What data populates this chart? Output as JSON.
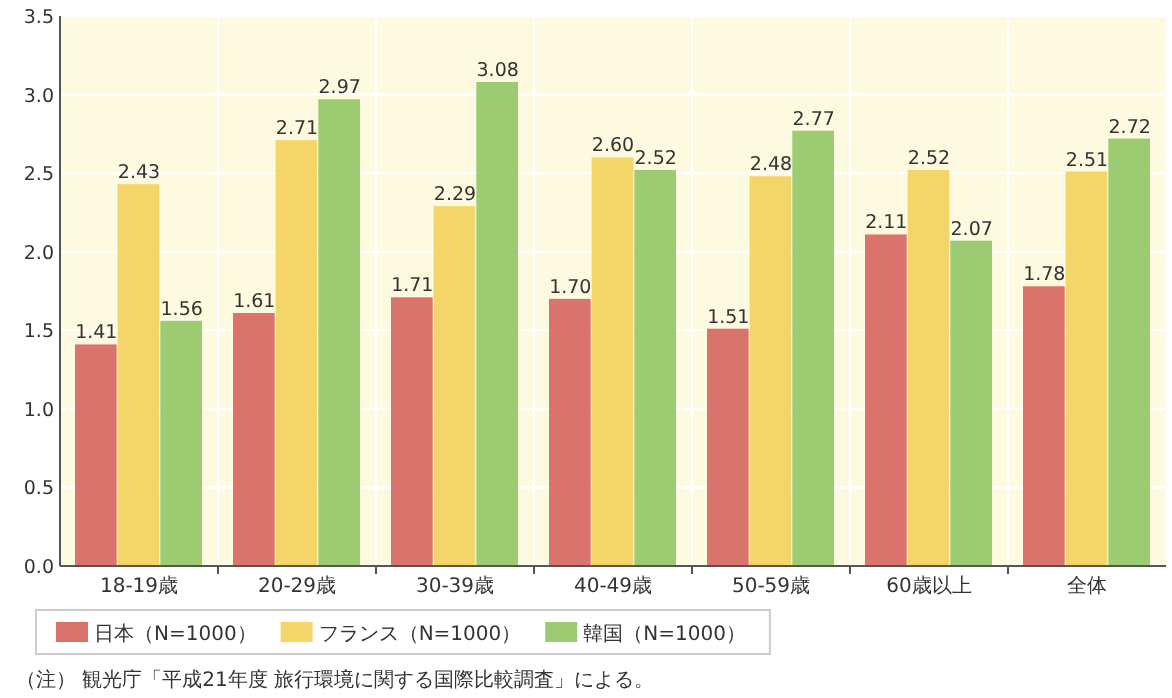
{
  "chart_data": {
    "type": "bar",
    "categories": [
      "18-19歳",
      "20-29歳",
      "30-39歳",
      "40-49歳",
      "50-59歳",
      "60歳以上",
      "全体"
    ],
    "series": [
      {
        "name": "日本（N=1000）",
        "color": "#d9736c",
        "values": [
          1.41,
          1.61,
          1.71,
          1.7,
          1.51,
          2.11,
          1.78
        ],
        "value_labels": [
          "1.41",
          "1.61",
          "1.71",
          "1.70",
          "1.51",
          "2.11",
          "1.78"
        ]
      },
      {
        "name": "フランス（N=1000）",
        "color": "#f3d56a",
        "values": [
          2.43,
          2.71,
          2.29,
          2.6,
          2.48,
          2.52,
          2.51
        ],
        "value_labels": [
          "2.43",
          "2.71",
          "2.29",
          "2.60",
          "2.48",
          "2.52",
          "2.51"
        ]
      },
      {
        "name": "韓国（N=1000）",
        "color": "#9ccb72",
        "values": [
          1.56,
          2.97,
          3.08,
          2.52,
          2.77,
          2.07,
          2.72
        ],
        "value_labels": [
          "1.56",
          "2.97",
          "3.08",
          "2.52",
          "2.77",
          "2.07",
          "2.72"
        ]
      }
    ],
    "ylim": [
      0,
      3.5
    ],
    "yticks": [
      {
        "value": 0,
        "label": "0.0"
      },
      {
        "value": 0.5,
        "label": "0.5"
      },
      {
        "value": 1,
        "label": "1.0"
      },
      {
        "value": 1.5,
        "label": "1.5"
      },
      {
        "value": 2,
        "label": "2.0"
      },
      {
        "value": 2.5,
        "label": "2.5"
      },
      {
        "value": 3,
        "label": "3.0"
      },
      {
        "value": 3.5,
        "label": "3.5"
      }
    ],
    "grid": true,
    "legend": "bottom",
    "annotations": [
      "（注） 観光庁「平成21年度 旅行環境に関する国際比較調査」による。"
    ]
  }
}
